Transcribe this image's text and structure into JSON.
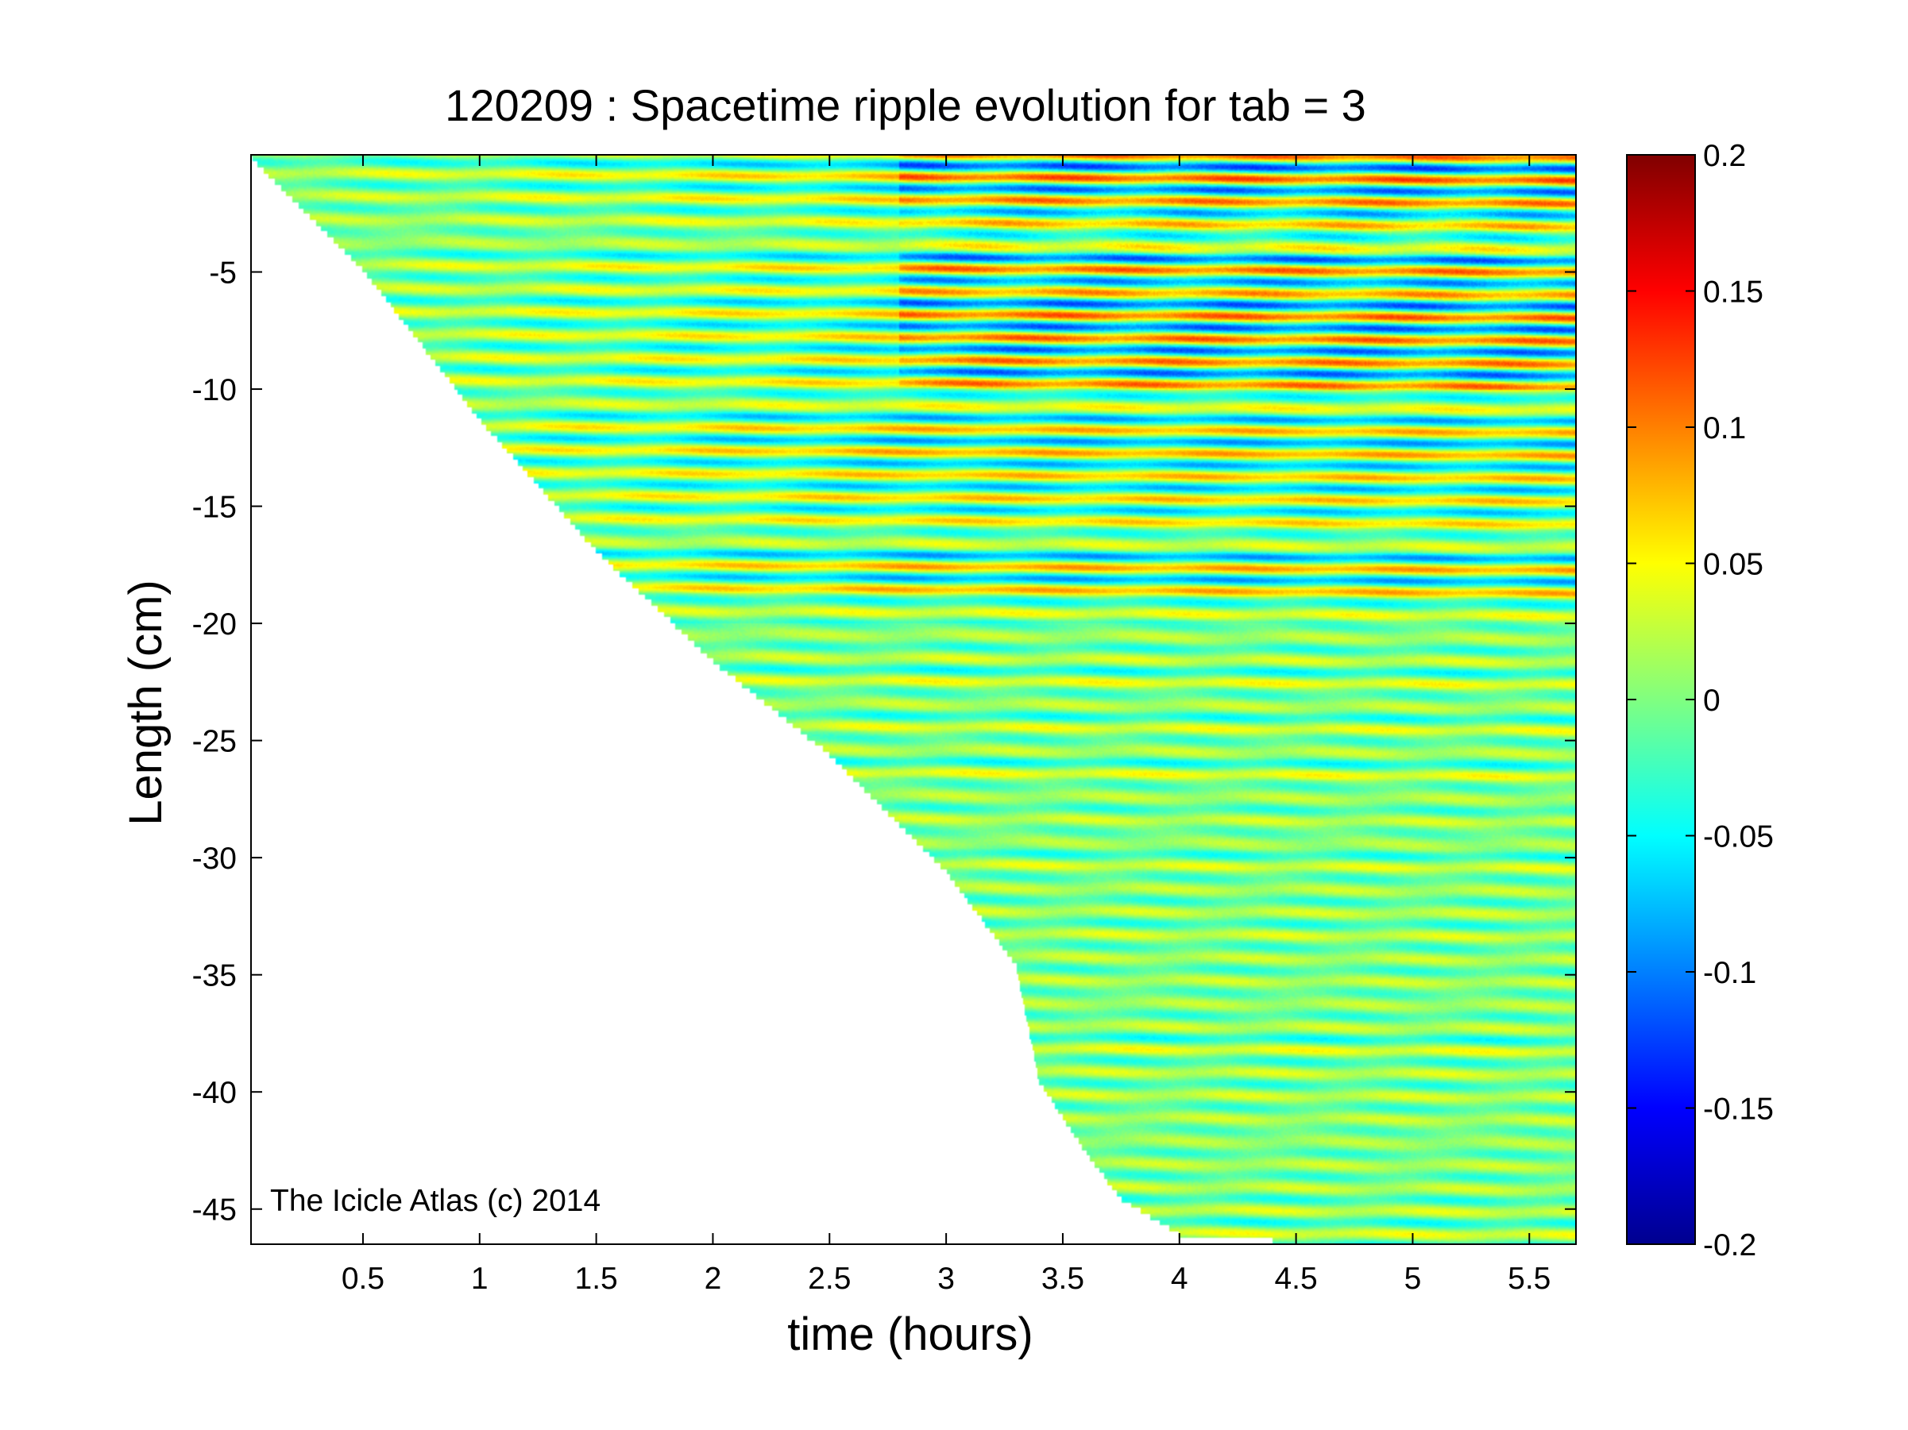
{
  "chart_data": {
    "type": "heatmap",
    "title": "120209 : Spacetime ripple evolution for tab = 3",
    "xlabel": "time (hours)",
    "ylabel": "Length (cm)",
    "xlim": [
      0.02,
      5.7
    ],
    "ylim": [
      -46.5,
      0
    ],
    "x_ticks": [
      0.5,
      1,
      1.5,
      2,
      2.5,
      3,
      3.5,
      4,
      4.5,
      5,
      5.5
    ],
    "x_tick_labels": [
      "0.5",
      "1",
      "1.5",
      "2",
      "2.5",
      "3",
      "3.5",
      "4",
      "4.5",
      "5",
      "5.5"
    ],
    "y_ticks": [
      -5,
      -10,
      -15,
      -20,
      -25,
      -30,
      -35,
      -40,
      -45
    ],
    "y_tick_labels": [
      "-5",
      "-10",
      "-15",
      "-20",
      "-25",
      "-30",
      "-35",
      "-40",
      "-45"
    ],
    "colorbar": {
      "colormap": "jet",
      "range": [
        -0.2,
        0.2
      ],
      "ticks": [
        0.2,
        0.15,
        0.1,
        0.05,
        0,
        -0.05,
        -0.1,
        -0.15,
        -0.2
      ],
      "tick_labels": [
        "0.2",
        "0.15",
        "0.1",
        "0.05",
        "0",
        "-0.05",
        "-0.1",
        "-0.15",
        "-0.2"
      ]
    },
    "data_boundary": {
      "description_free": true,
      "time": [
        0.02,
        0.5,
        1.0,
        1.5,
        2.0,
        2.5,
        3.0,
        3.3,
        3.4,
        3.6,
        3.75,
        4.0,
        4.8,
        5.7
      ],
      "length": [
        0,
        -4.8,
        -11.2,
        -16.8,
        -21.5,
        -25.5,
        -30.5,
        -34.5,
        -39.5,
        -42.5,
        -44.5,
        -46.0,
        -46.5,
        -46.5
      ]
    },
    "grid": false
  },
  "watermark": "The Icicle Atlas (c) 2014"
}
